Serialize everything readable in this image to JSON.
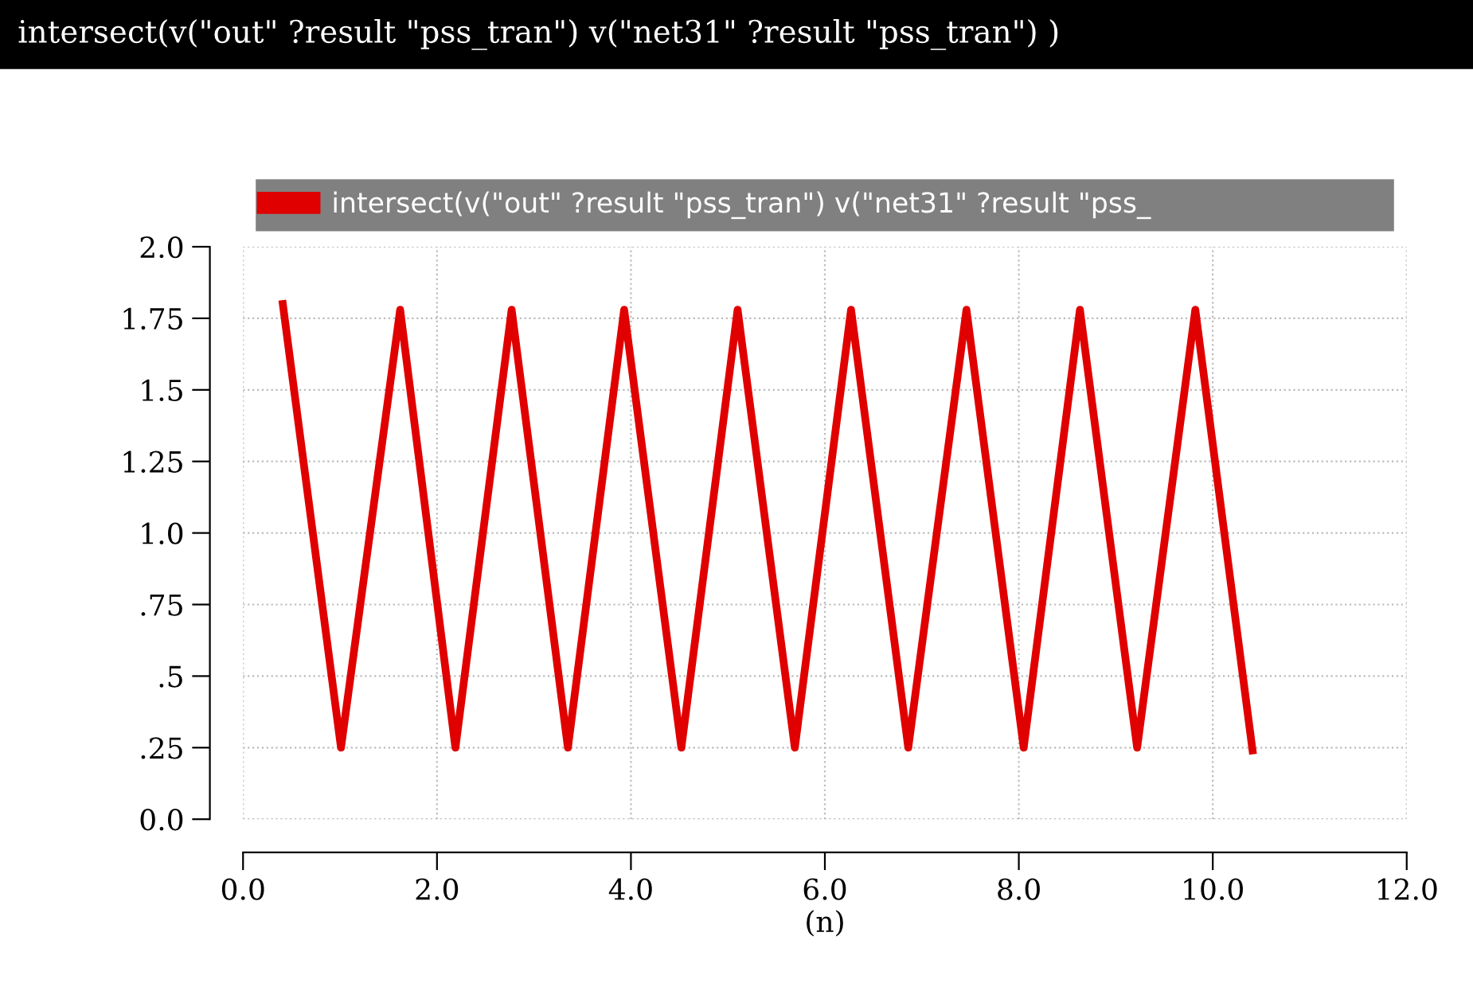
{
  "chart_data": {
    "type": "line",
    "title": "intersect(v(\"out\" ?result \"pss_tran\") v(\"net31\" ?result \"pss_tran\") )",
    "xlabel": "(n)",
    "series": [
      {
        "name": "intersect(v(\"out\" ?result \"pss_tran\") v(\"net31\" ?result \"pss_",
        "color": "#e00000",
        "x": [
          0.41,
          1.01,
          1.62,
          2.19,
          2.77,
          3.35,
          3.93,
          4.52,
          5.1,
          5.69,
          6.27,
          6.86,
          7.46,
          8.05,
          8.63,
          9.22,
          9.82,
          10.41
        ],
        "values": [
          1.8,
          0.25,
          1.78,
          0.25,
          1.78,
          0.25,
          1.78,
          0.25,
          1.78,
          0.25,
          1.78,
          0.25,
          1.78,
          0.25,
          1.78,
          0.25,
          1.78,
          0.24
        ]
      }
    ],
    "xlim": [
      0,
      12
    ],
    "ylim": [
      0,
      2
    ],
    "xticks": [
      {
        "value": 0,
        "label": "0.0"
      },
      {
        "value": 2,
        "label": "2.0"
      },
      {
        "value": 4,
        "label": "4.0"
      },
      {
        "value": 6,
        "label": "6.0"
      },
      {
        "value": 8,
        "label": "8.0"
      },
      {
        "value": 10,
        "label": "10.0"
      },
      {
        "value": 12,
        "label": "12.0"
      }
    ],
    "yticks": [
      {
        "value": 0,
        "label": "0.0"
      },
      {
        "value": 0.25,
        "label": ".25"
      },
      {
        "value": 0.5,
        "label": ".5"
      },
      {
        "value": 0.75,
        "label": ".75"
      },
      {
        "value": 1.0,
        "label": "1.0"
      },
      1.25,
      1.5,
      1.75,
      {
        "value": 2.0,
        "label": "2.0"
      }
    ],
    "grid": true,
    "legend": "top",
    "line_style": "solid",
    "marker": "none"
  }
}
